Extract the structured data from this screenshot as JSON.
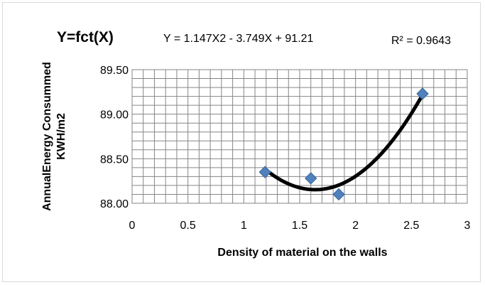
{
  "chart_data": {
    "type": "scatter",
    "title": "Y=fct(X)",
    "annotations": {
      "equation": "Y = 1.147X2 - 3.749X + 91.21",
      "r_squared": "R² = 0.9643"
    },
    "xlabel": "Density of  material on the walls",
    "ylabel": [
      "AnnualEnergy Consummed",
      "KWH/m2"
    ],
    "xlim": [
      0,
      3
    ],
    "ylim": [
      88.0,
      89.5
    ],
    "xticks": [
      "0",
      "0.5",
      "1",
      "1.5",
      "2",
      "2.5",
      "3"
    ],
    "yticks": [
      "88.00",
      "88.50",
      "89.00",
      "89.50"
    ],
    "grid": true,
    "series": [
      {
        "marker": "diamond",
        "color": "#4f81bd",
        "x": [
          1.19,
          1.6,
          1.85,
          2.6
        ],
        "y": [
          88.35,
          88.28,
          88.1,
          89.23
        ]
      }
    ],
    "trendline": {
      "type": "polynomial",
      "order": 2,
      "color": "#000000",
      "x_range": [
        1.19,
        2.6
      ]
    }
  }
}
